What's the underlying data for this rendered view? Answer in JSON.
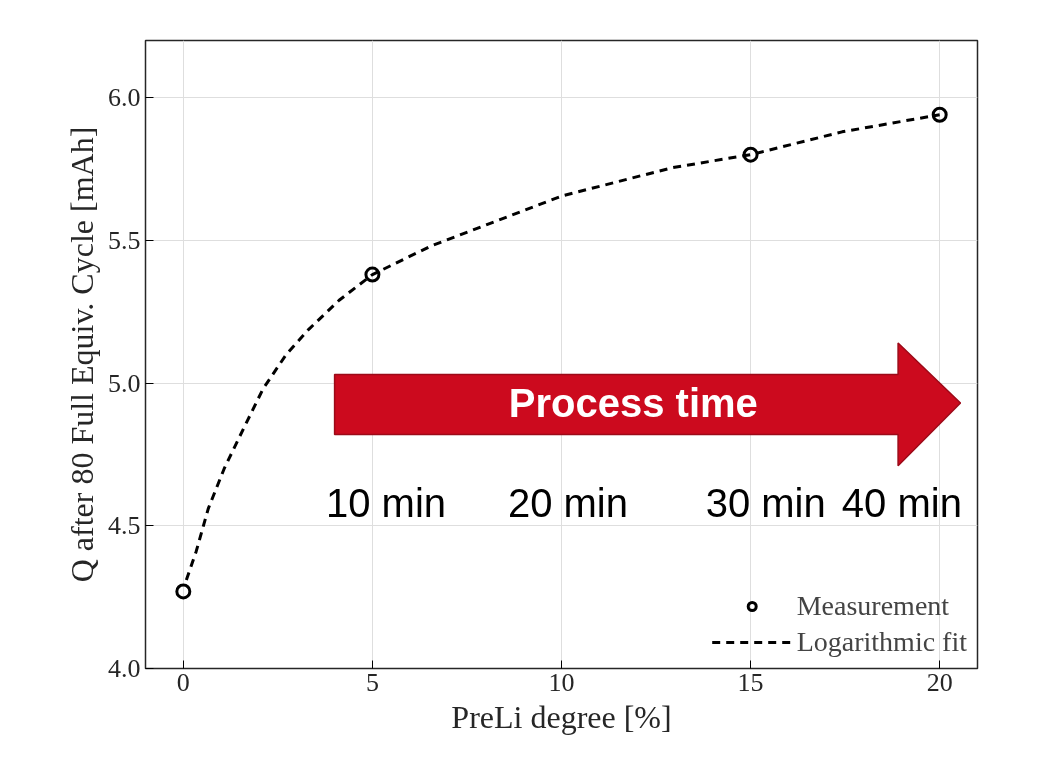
{
  "chart_data": {
    "type": "scatter",
    "xlabel": "PreLi degree [%]",
    "ylabel": "Q after 80 Full Equiv. Cycle [mAh]",
    "xlim": [
      -1,
      21
    ],
    "ylim": [
      4.0,
      6.2
    ],
    "xticks": [
      0,
      5,
      10,
      15,
      20
    ],
    "yticks": [
      {
        "value": 4.0,
        "label": "4.0"
      },
      {
        "value": 4.5,
        "label": "4.5"
      },
      {
        "value": 5.0,
        "label": "5.0"
      },
      {
        "value": 5.5,
        "label": "5.5"
      },
      {
        "value": 6.0,
        "label": "6.0"
      }
    ],
    "grid": true,
    "legend": "bottom right",
    "series": [
      {
        "name": "Measurement",
        "marker": "circle",
        "color": "#000000",
        "x": [
          0,
          5,
          15,
          20
        ],
        "values": [
          4.27,
          5.38,
          5.8,
          5.94
        ]
      },
      {
        "name": "Logarithmic fit",
        "type": "line",
        "line_style": "dashed",
        "color": "#000000",
        "x": [
          0.08,
          0.34,
          0.66,
          1.08,
          1.59,
          2.11,
          2.72,
          3.33,
          4.12,
          5,
          6.55,
          10,
          12.95,
          15,
          17.42,
          20
        ],
        "values": [
          4.31,
          4.41,
          4.56,
          4.7,
          4.84,
          4.98,
          5.1,
          5.19,
          5.29,
          5.38,
          5.48,
          5.655,
          5.755,
          5.8,
          5.88,
          5.94
        ]
      }
    ],
    "annotations": [
      "Process time",
      "10 min",
      "20 min",
      "30 min",
      "40 min"
    ]
  }
}
